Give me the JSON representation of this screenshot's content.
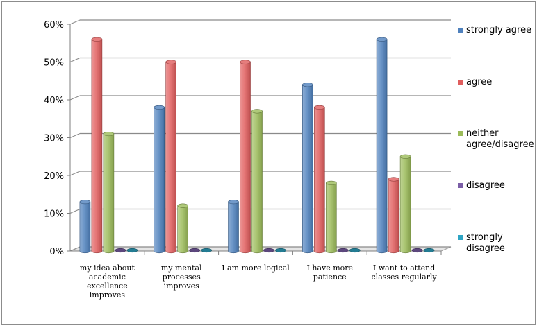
{
  "chart_data": {
    "type": "bar",
    "title": "",
    "xlabel": "",
    "ylabel": "",
    "ylim": [
      0,
      60
    ],
    "yticks": [
      "0%",
      "10%",
      "20%",
      "30%",
      "40%",
      "50%",
      "60%"
    ],
    "categories": [
      [
        "my idea about",
        "academic",
        "excellence",
        "improves"
      ],
      [
        "my mental",
        "processes",
        "improves"
      ],
      [
        "I am more  logical"
      ],
      [
        "I have more",
        "patience"
      ],
      [
        "I want to attend",
        "classes regularly"
      ]
    ],
    "series": [
      {
        "name": "strongly agree",
        "legend": [
          "strongly agree"
        ],
        "color": "#4f81bd",
        "values": [
          13,
          38,
          13,
          44,
          56
        ]
      },
      {
        "name": "agree",
        "legend": [
          "agree"
        ],
        "color": "#e05d5d",
        "values": [
          56,
          50,
          50,
          38,
          19
        ]
      },
      {
        "name": "neither agree/disagree",
        "legend": [
          "neither",
          "agree/disagree"
        ],
        "color": "#9bbb59",
        "values": [
          31,
          12,
          37,
          18,
          25
        ]
      },
      {
        "name": "disagree",
        "legend": [
          "disagree"
        ],
        "color": "#7b5ea7",
        "values": [
          0,
          0,
          0,
          0,
          0
        ]
      },
      {
        "name": "strongly disagree",
        "legend": [
          "strongly",
          "disagree"
        ],
        "color": "#2ea5c4",
        "values": [
          0,
          0,
          0,
          0,
          0
        ]
      }
    ],
    "legend_position": "right",
    "grid": true
  }
}
